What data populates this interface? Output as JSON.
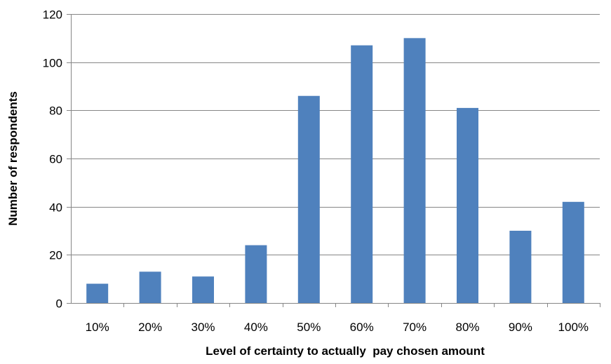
{
  "chart_data": {
    "type": "bar",
    "title": "",
    "xlabel": "Level of certainty to actually  pay chosen amount",
    "ylabel": "Number of respondents",
    "categories": [
      "10%",
      "20%",
      "30%",
      "40%",
      "50%",
      "60%",
      "70%",
      "80%",
      "90%",
      "100%"
    ],
    "values": [
      8,
      13,
      11,
      24,
      86,
      107,
      110,
      81,
      30,
      42
    ],
    "ylim": [
      0,
      120
    ],
    "yticks": [
      "0",
      "20",
      "40",
      "60",
      "80",
      "100",
      "120"
    ],
    "grid": true,
    "legend": "none",
    "bar_color": "#4f81bd",
    "grid_color": "#868686"
  }
}
